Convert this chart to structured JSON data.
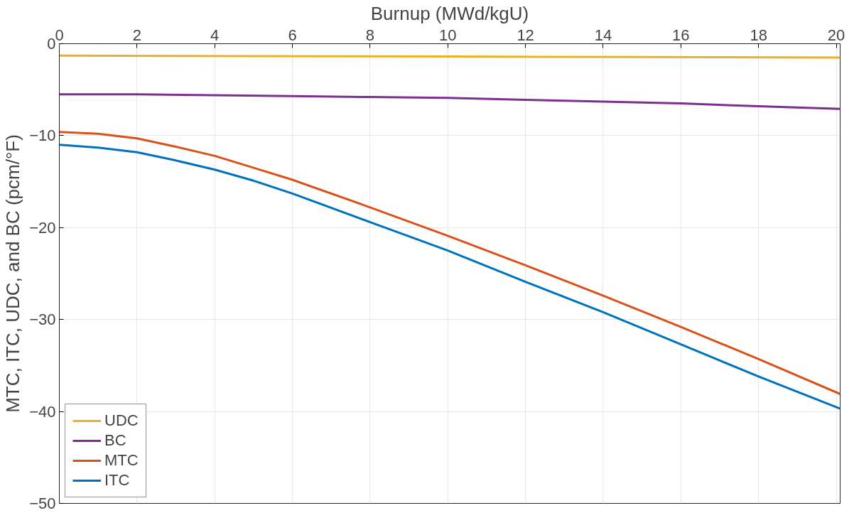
{
  "chart_data": {
    "type": "line",
    "xlabel": "Burnup (MWd/kgU)",
    "ylabel": "MTC, ITC, UDC, and BC (pcm/°F)",
    "xlim": [
      0,
      20.1
    ],
    "ylim": [
      -50,
      0
    ],
    "xticks": [
      0,
      2,
      4,
      6,
      8,
      10,
      12,
      14,
      16,
      18,
      20
    ],
    "yticks": [
      -50,
      -40,
      -30,
      -20,
      -10,
      0
    ],
    "grid": true,
    "legend": "bottom left",
    "marker": "none",
    "line_style": "solid",
    "series": [
      {
        "name": "UDC",
        "color": "#edb120",
        "x": [
          0,
          5,
          10,
          15,
          20.1
        ],
        "values": [
          -1.3,
          -1.35,
          -1.4,
          -1.45,
          -1.5
        ]
      },
      {
        "name": "BC",
        "color": "#7e2f8e",
        "x": [
          0,
          2,
          4,
          6,
          8,
          10,
          12,
          14,
          16,
          18,
          20.1
        ],
        "values": [
          -5.5,
          -5.5,
          -5.6,
          -5.7,
          -5.8,
          -5.9,
          -6.1,
          -6.3,
          -6.5,
          -6.8,
          -7.1
        ]
      },
      {
        "name": "MTC",
        "color": "#d95319",
        "x": [
          0,
          1,
          2,
          3,
          4,
          5,
          6,
          8,
          10,
          12,
          14,
          16,
          18,
          20.1
        ],
        "values": [
          -9.6,
          -9.8,
          -10.3,
          -11.2,
          -12.2,
          -13.5,
          -14.8,
          -17.8,
          -20.9,
          -24.1,
          -27.4,
          -30.8,
          -34.3,
          -38.1
        ]
      },
      {
        "name": "ITC",
        "color": "#0072bd",
        "x": [
          0,
          1,
          2,
          3,
          4,
          5,
          6,
          8,
          10,
          12,
          14,
          16,
          18,
          20.1
        ],
        "values": [
          -11.0,
          -11.3,
          -11.8,
          -12.7,
          -13.7,
          -14.9,
          -16.3,
          -19.4,
          -22.5,
          -25.9,
          -29.2,
          -32.7,
          -36.2,
          -39.7
        ]
      }
    ]
  }
}
